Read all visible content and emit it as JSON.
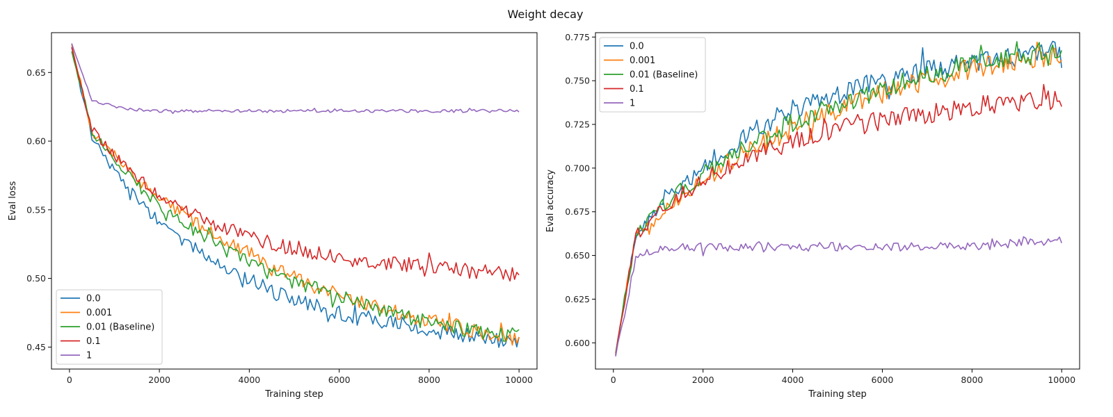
{
  "figure": {
    "title": "Weight decay"
  },
  "chart_data": [
    {
      "type": "line",
      "title": "",
      "xlabel": "Training step",
      "ylabel": "Eval loss",
      "xlim": [
        -400,
        10400
      ],
      "ylim": [
        0.434,
        0.679
      ],
      "xticks": [
        0,
        2000,
        4000,
        6000,
        8000,
        10000
      ],
      "yticks": [
        0.45,
        0.5,
        0.55,
        0.6,
        0.65
      ],
      "yticks_labels": [
        "0.45",
        "0.50",
        "0.55",
        "0.60",
        "0.65"
      ],
      "legend": "lower-left",
      "x": [
        50,
        500,
        1000,
        1500,
        2000,
        2500,
        3000,
        3500,
        4000,
        4500,
        5000,
        5500,
        6000,
        6500,
        7000,
        7500,
        8000,
        8500,
        9000,
        9500,
        10000
      ],
      "series": [
        {
          "name": "0.0",
          "color": "#1f77b4",
          "values": [
            0.668,
            0.604,
            0.578,
            0.558,
            0.541,
            0.53,
            0.516,
            0.507,
            0.5,
            0.49,
            0.485,
            0.481,
            0.475,
            0.47,
            0.468,
            0.466,
            0.462,
            0.46,
            0.457,
            0.455,
            0.453
          ]
        },
        {
          "name": "0.001",
          "color": "#ff7f0e",
          "values": [
            0.67,
            0.607,
            0.59,
            0.572,
            0.558,
            0.548,
            0.536,
            0.526,
            0.518,
            0.507,
            0.5,
            0.494,
            0.489,
            0.483,
            0.478,
            0.473,
            0.469,
            0.466,
            0.462,
            0.459,
            0.455
          ]
        },
        {
          "name": "0.01 (Baseline)",
          "color": "#2ca02c",
          "values": [
            0.665,
            0.607,
            0.588,
            0.568,
            0.553,
            0.541,
            0.531,
            0.521,
            0.512,
            0.503,
            0.497,
            0.492,
            0.487,
            0.481,
            0.476,
            0.472,
            0.468,
            0.465,
            0.462,
            0.46,
            0.458
          ]
        },
        {
          "name": "0.1",
          "color": "#d62728",
          "values": [
            0.668,
            0.609,
            0.589,
            0.574,
            0.561,
            0.551,
            0.543,
            0.536,
            0.53,
            0.525,
            0.521,
            0.518,
            0.515,
            0.513,
            0.512,
            0.51,
            0.509,
            0.507,
            0.505,
            0.504,
            0.503
          ]
        },
        {
          "name": "1",
          "color": "#9467bd",
          "values": [
            0.671,
            0.63,
            0.625,
            0.623,
            0.622,
            0.622,
            0.622,
            0.622,
            0.622,
            0.622,
            0.622,
            0.622,
            0.622,
            0.622,
            0.622,
            0.622,
            0.622,
            0.622,
            0.622,
            0.622,
            0.622
          ]
        }
      ]
    },
    {
      "type": "line",
      "title": "",
      "xlabel": "Training step",
      "ylabel": "Eval accuracy",
      "xlim": [
        -400,
        10400
      ],
      "ylim": [
        0.585,
        0.7775
      ],
      "xticks": [
        0,
        2000,
        4000,
        6000,
        8000,
        10000
      ],
      "yticks": [
        0.6,
        0.625,
        0.65,
        0.675,
        0.7,
        0.725,
        0.75,
        0.775
      ],
      "yticks_labels": [
        "0.600",
        "0.625",
        "0.650",
        "0.675",
        "0.700",
        "0.725",
        "0.750",
        "0.775"
      ],
      "legend": "upper-left",
      "x": [
        50,
        500,
        1000,
        1500,
        2000,
        2500,
        3000,
        3500,
        4000,
        4500,
        5000,
        5500,
        6000,
        6500,
        7000,
        7500,
        8000,
        8500,
        9000,
        9500,
        10000
      ],
      "series": [
        {
          "name": "0.0",
          "color": "#1f77b4",
          "values": [
            0.593,
            0.663,
            0.678,
            0.69,
            0.7,
            0.71,
            0.718,
            0.727,
            0.733,
            0.738,
            0.742,
            0.746,
            0.75,
            0.753,
            0.756,
            0.758,
            0.76,
            0.762,
            0.764,
            0.766,
            0.767
          ]
        },
        {
          "name": "0.001",
          "color": "#ff7f0e",
          "values": [
            0.594,
            0.66,
            0.673,
            0.684,
            0.693,
            0.702,
            0.709,
            0.716,
            0.723,
            0.729,
            0.734,
            0.739,
            0.743,
            0.747,
            0.751,
            0.754,
            0.757,
            0.759,
            0.761,
            0.763,
            0.765
          ]
        },
        {
          "name": "0.01 (Baseline)",
          "color": "#2ca02c",
          "values": [
            0.595,
            0.662,
            0.676,
            0.687,
            0.696,
            0.705,
            0.712,
            0.719,
            0.726,
            0.731,
            0.736,
            0.741,
            0.745,
            0.749,
            0.753,
            0.756,
            0.759,
            0.761,
            0.763,
            0.764,
            0.765
          ]
        },
        {
          "name": "0.1",
          "color": "#d62728",
          "values": [
            0.594,
            0.661,
            0.675,
            0.685,
            0.693,
            0.7,
            0.706,
            0.711,
            0.715,
            0.719,
            0.722,
            0.725,
            0.727,
            0.729,
            0.731,
            0.733,
            0.735,
            0.737,
            0.738,
            0.739,
            0.74
          ]
        },
        {
          "name": "1",
          "color": "#9467bd",
          "values": [
            0.593,
            0.648,
            0.654,
            0.655,
            0.655,
            0.655,
            0.655,
            0.655,
            0.655,
            0.655,
            0.655,
            0.655,
            0.655,
            0.655,
            0.655,
            0.655,
            0.655,
            0.656,
            0.657,
            0.658,
            0.659
          ]
        }
      ]
    }
  ]
}
